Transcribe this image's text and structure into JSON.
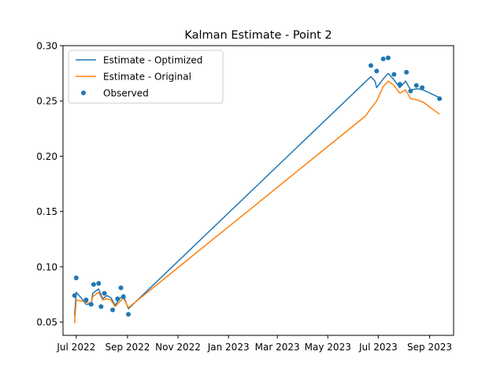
{
  "chart_data": {
    "type": "line",
    "title": "Kalman Estimate - Point 2",
    "xlabel": "",
    "ylabel": "",
    "x_type": "date",
    "xlim": [
      "2022-06-15",
      "2023-09-30"
    ],
    "ylim": [
      0.038,
      0.3
    ],
    "x_ticks": [
      {
        "date": "2022-07-01",
        "label": "Jul 2022"
      },
      {
        "date": "2022-09-01",
        "label": "Sep 2022"
      },
      {
        "date": "2022-11-01",
        "label": "Nov 2022"
      },
      {
        "date": "2023-01-01",
        "label": "Jan 2023"
      },
      {
        "date": "2023-03-01",
        "label": "Mar 2023"
      },
      {
        "date": "2023-05-01",
        "label": "May 2023"
      },
      {
        "date": "2023-07-01",
        "label": "Jul 2023"
      },
      {
        "date": "2023-09-01",
        "label": "Sep 2023"
      }
    ],
    "y_ticks": [
      0.05,
      0.1,
      0.15,
      0.2,
      0.25,
      0.3
    ],
    "y_tick_labels": [
      "0.05",
      "0.10",
      "0.15",
      "0.20",
      "0.25",
      "0.30"
    ],
    "grid": false,
    "legend_position": "top-left",
    "series": [
      {
        "name": "Estimate - Optimized",
        "kind": "line",
        "color": "#1f77b4",
        "points": [
          [
            "2022-06-29",
            0.056
          ],
          [
            "2022-07-01",
            0.077
          ],
          [
            "2022-07-08",
            0.071
          ],
          [
            "2022-07-13",
            0.066
          ],
          [
            "2022-07-19",
            0.066
          ],
          [
            "2022-07-21",
            0.076
          ],
          [
            "2022-07-28",
            0.08
          ],
          [
            "2022-08-02",
            0.071
          ],
          [
            "2022-08-07",
            0.074
          ],
          [
            "2022-08-12",
            0.072
          ],
          [
            "2022-08-17",
            0.065
          ],
          [
            "2022-08-22",
            0.071
          ],
          [
            "2022-08-27",
            0.074
          ],
          [
            "2022-09-02",
            0.062
          ],
          [
            "2023-06-22",
            0.272
          ],
          [
            "2023-06-27",
            0.268
          ],
          [
            "2023-06-29",
            0.262
          ],
          [
            "2023-07-07",
            0.27
          ],
          [
            "2023-07-13",
            0.275
          ],
          [
            "2023-07-20",
            0.269
          ],
          [
            "2023-07-27",
            0.262
          ],
          [
            "2023-08-03",
            0.268
          ],
          [
            "2023-08-09",
            0.26
          ],
          [
            "2023-08-17",
            0.261
          ],
          [
            "2023-08-24",
            0.26
          ],
          [
            "2023-09-13",
            0.253
          ]
        ]
      },
      {
        "name": "Estimate - Original",
        "kind": "line",
        "color": "#ff7f0e",
        "points": [
          [
            "2022-06-29",
            0.049
          ],
          [
            "2022-07-01",
            0.07
          ],
          [
            "2022-07-08",
            0.069
          ],
          [
            "2022-07-13",
            0.068
          ],
          [
            "2022-07-19",
            0.067
          ],
          [
            "2022-07-21",
            0.073
          ],
          [
            "2022-07-28",
            0.077
          ],
          [
            "2022-08-02",
            0.07
          ],
          [
            "2022-08-07",
            0.071
          ],
          [
            "2022-08-12",
            0.07
          ],
          [
            "2022-08-17",
            0.064
          ],
          [
            "2022-08-22",
            0.068
          ],
          [
            "2022-08-27",
            0.072
          ],
          [
            "2022-09-02",
            0.063
          ],
          [
            "2023-06-15",
            0.236
          ],
          [
            "2023-06-29",
            0.25
          ],
          [
            "2023-07-07",
            0.263
          ],
          [
            "2023-07-13",
            0.268
          ],
          [
            "2023-07-20",
            0.264
          ],
          [
            "2023-07-27",
            0.257
          ],
          [
            "2023-08-03",
            0.26
          ],
          [
            "2023-08-09",
            0.252
          ],
          [
            "2023-08-17",
            0.251
          ],
          [
            "2023-08-24",
            0.249
          ],
          [
            "2023-09-13",
            0.238
          ]
        ]
      },
      {
        "name": "Observed",
        "kind": "scatter",
        "color": "#1f77b4",
        "points": [
          [
            "2022-06-29",
            0.074
          ],
          [
            "2022-07-01",
            0.09
          ],
          [
            "2022-07-13",
            0.07
          ],
          [
            "2022-07-19",
            0.066
          ],
          [
            "2022-07-22",
            0.084
          ],
          [
            "2022-07-28",
            0.085
          ],
          [
            "2022-07-31",
            0.064
          ],
          [
            "2022-08-04",
            0.076
          ],
          [
            "2022-08-14",
            0.061
          ],
          [
            "2022-08-20",
            0.071
          ],
          [
            "2022-08-24",
            0.081
          ],
          [
            "2022-08-27",
            0.073
          ],
          [
            "2022-09-02",
            0.057
          ],
          [
            "2023-06-22",
            0.282
          ],
          [
            "2023-06-29",
            0.277
          ],
          [
            "2023-07-07",
            0.288
          ],
          [
            "2023-07-13",
            0.289
          ],
          [
            "2023-07-20",
            0.274
          ],
          [
            "2023-07-27",
            0.265
          ],
          [
            "2023-08-04",
            0.276
          ],
          [
            "2023-08-09",
            0.259
          ],
          [
            "2023-08-16",
            0.264
          ],
          [
            "2023-08-23",
            0.262
          ],
          [
            "2023-09-13",
            0.252
          ]
        ]
      }
    ]
  }
}
